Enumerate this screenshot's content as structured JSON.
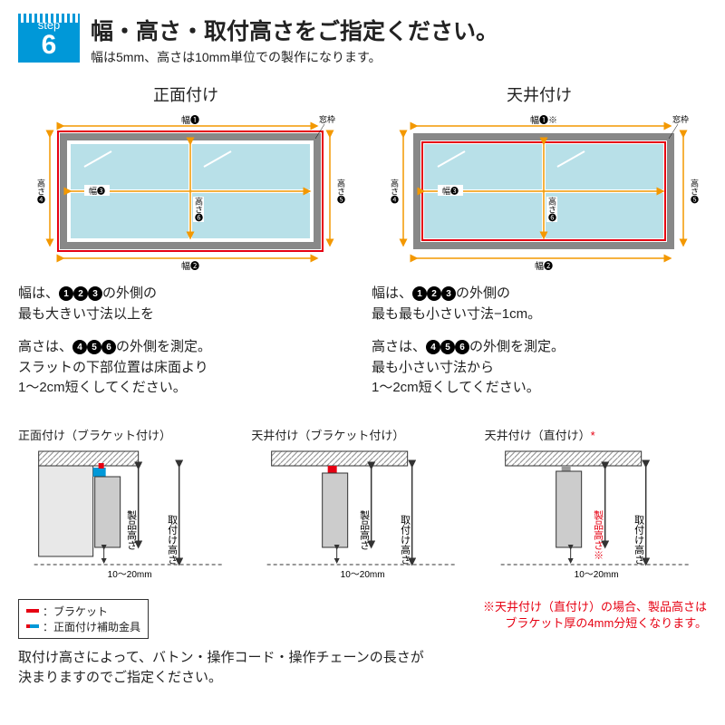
{
  "step": {
    "label": "step",
    "number": "6"
  },
  "title": "幅・高さ・取付高さをご指定ください。",
  "subtitle": "幅は5mm、高さは10mm単位での製作になります。",
  "colors": {
    "accent": "#0098d8",
    "arrow": "#f39800",
    "red": "#e60012",
    "glass": "#b8e0e8",
    "frame": "#888",
    "dark": "#333"
  },
  "left": {
    "title": "正面付け",
    "labels": {
      "w1": "幅❶",
      "w2": "幅❷",
      "w3": "幅❸",
      "h4": "高さ❹",
      "h5": "高さ❺",
      "h6": "高さ❻",
      "frame": "窓枠"
    },
    "desc1_pre": "幅は、",
    "desc1_nums": "❶❷❸",
    "desc1_post": "の外側の\n最も大きい寸法以上を",
    "desc2_pre": "高さは、",
    "desc2_nums": "❹❺❻",
    "desc2_post": "の外側を測定。\nスラットの下部位置は床面より\n1〜2cm短くしてください。"
  },
  "right": {
    "title": "天井付け",
    "labels": {
      "w1": "幅❶※",
      "w2": "幅❷",
      "w3": "幅❸",
      "h4": "高さ❹",
      "h5": "高さ❺",
      "h6": "高さ❻",
      "frame": "窓枠"
    },
    "desc1_pre": "幅は、",
    "desc1_nums": "❶❷❸",
    "desc1_post": "の外側の\n最も最も小さい寸法−1cm。",
    "desc2_pre": "高さは、",
    "desc2_nums": "❹❺❻",
    "desc2_post": "の外側を測定。\n最も小さい寸法から\n1〜2cm短くしてください。"
  },
  "brackets": [
    {
      "title": "正面付け（ブラケット付け）",
      "gap": "10〜20mm",
      "l1": "製品高さ",
      "l2": "取付け高さ",
      "type": "front"
    },
    {
      "title": "天井付け（ブラケット付け）",
      "gap": "10〜20mm",
      "l1": "製品高さ",
      "l2": "取付け高さ",
      "type": "ceiling"
    },
    {
      "title": "天井付け（直付け）",
      "title_suffix": "*",
      "gap": "10〜20mm",
      "l1": "製品高さ",
      "l1_suffix": "※",
      "l2": "取付け高さ",
      "type": "direct"
    }
  ],
  "legend": {
    "bracket": "：ブラケット",
    "aux": "：正面付け補助金具"
  },
  "note": "※天井付け（直付け）の場合、製品高さは\nブラケット厚の4mm分短くなります。",
  "footer": "取付け高さによって、バトン・操作コード・操作チェーンの長さが\n決まりますのでご指定ください。"
}
